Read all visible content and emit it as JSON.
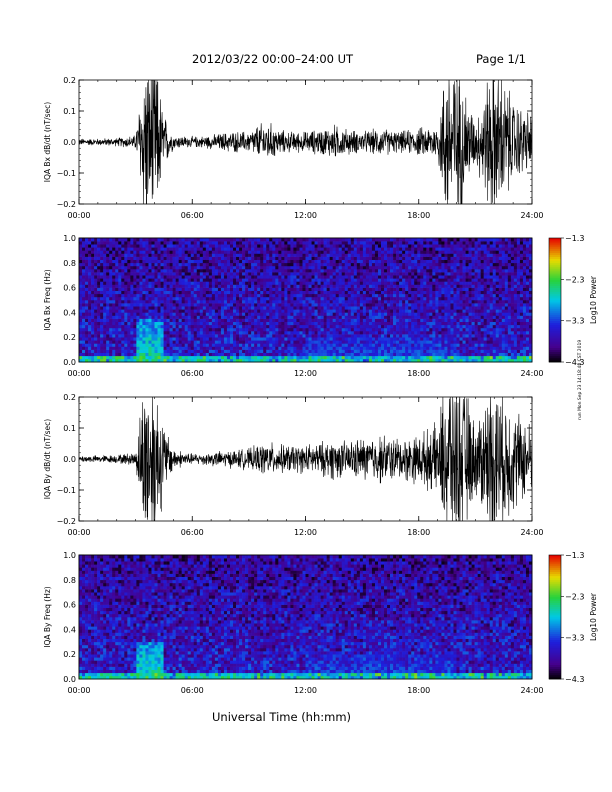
{
  "header": {
    "title": "2012/03/22  00:00–24:00 UT",
    "page": "Page 1/1"
  },
  "footer": {
    "xlabel": "Universal Time (hh:mm)",
    "timestamp": "run Mon Sep 23 14:18:48 CST 2019"
  },
  "chart_data": [
    {
      "type": "line",
      "ylabel": "IQA Bx dB/dt (nT/sec)",
      "ylim": [
        -0.2,
        0.2
      ],
      "yticks": [
        "−0.2",
        "−0.1",
        "0.0",
        "0.1",
        "0.2"
      ],
      "xticks": [
        "00:00",
        "06:00",
        "12:00",
        "18:00",
        "24:00"
      ],
      "xlim": [
        0,
        24
      ],
      "series": [
        {
          "x": [
            0,
            1,
            2,
            3,
            3.5,
            4,
            4.5,
            5,
            6,
            7,
            8,
            9,
            9.5,
            10,
            10.5,
            11,
            12,
            13,
            13.5,
            14,
            15,
            16,
            17,
            18,
            19,
            19.5,
            20,
            20.5,
            21,
            22,
            23,
            24
          ],
          "amplitude": [
            0.01,
            0.01,
            0.012,
            0.02,
            0.25,
            0.25,
            0.08,
            0.02,
            0.015,
            0.02,
            0.03,
            0.03,
            0.05,
            0.06,
            0.04,
            0.03,
            0.03,
            0.04,
            0.05,
            0.04,
            0.03,
            0.04,
            0.03,
            0.04,
            0.05,
            0.25,
            0.25,
            0.15,
            0.06,
            0.25,
            0.12,
            0.08
          ]
        }
      ]
    },
    {
      "type": "heatmap",
      "ylabel": "IQA Bx Freq (Hz)",
      "ylim": [
        0,
        1.0
      ],
      "yticks": [
        "0.0",
        "0.2",
        "0.4",
        "0.6",
        "0.8",
        "1.0"
      ],
      "xticks": [
        "00:00",
        "06:00",
        "12:00",
        "18:00",
        "24:00"
      ],
      "xlim": [
        0,
        24
      ],
      "colorbar": {
        "label": "Log10 Power",
        "ticks": [
          "−1.3",
          "−2.3",
          "−3.3",
          "−4.3"
        ],
        "range": [
          -4.3,
          -1.3
        ]
      },
      "features": [
        {
          "x": [
            3,
            4.5
          ],
          "ymax": 0.35,
          "level": -2.3
        },
        {
          "x": [
            12,
            20
          ],
          "ymax": 0.2,
          "level": -3.0
        },
        {
          "x": [
            15,
            18
          ],
          "ymax": 0.6,
          "level": -3.2
        }
      ]
    },
    {
      "type": "line",
      "ylabel": "IQA By dB/dt (nT/sec)",
      "ylim": [
        -0.2,
        0.2
      ],
      "yticks": [
        "−0.2",
        "−0.1",
        "0.0",
        "0.1",
        "0.2"
      ],
      "xticks": [
        "00:00",
        "06:00",
        "12:00",
        "18:00",
        "24:00"
      ],
      "xlim": [
        0,
        24
      ],
      "series": [
        {
          "x": [
            0,
            1,
            2,
            3,
            3.5,
            4,
            4.5,
            5,
            6,
            7,
            8,
            9,
            9.5,
            10,
            10.5,
            11,
            12,
            13,
            13.5,
            14,
            15,
            16,
            17,
            18,
            19,
            19.5,
            20,
            20.5,
            21,
            22,
            23,
            24
          ],
          "amplitude": [
            0.01,
            0.01,
            0.012,
            0.02,
            0.25,
            0.25,
            0.1,
            0.03,
            0.015,
            0.02,
            0.025,
            0.03,
            0.04,
            0.05,
            0.04,
            0.04,
            0.04,
            0.05,
            0.06,
            0.05,
            0.06,
            0.07,
            0.06,
            0.07,
            0.1,
            0.25,
            0.25,
            0.2,
            0.1,
            0.25,
            0.15,
            0.1
          ]
        }
      ]
    },
    {
      "type": "heatmap",
      "ylabel": "IQA By Freq (Hz)",
      "ylim": [
        0,
        1.0
      ],
      "yticks": [
        "0.0",
        "0.2",
        "0.4",
        "0.6",
        "0.8",
        "1.0"
      ],
      "xticks": [
        "00:00",
        "06:00",
        "12:00",
        "18:00",
        "24:00"
      ],
      "xlim": [
        0,
        24
      ],
      "colorbar": {
        "label": "Log10 Power",
        "ticks": [
          "−1.3",
          "−2.3",
          "−3.3",
          "−4.3"
        ],
        "range": [
          -4.3,
          -1.3
        ]
      },
      "features": [
        {
          "x": [
            3,
            4.5
          ],
          "ymax": 0.3,
          "level": -2.3
        },
        {
          "x": [
            12,
            20
          ],
          "ymax": 0.2,
          "level": -3.0
        },
        {
          "x": [
            15,
            18
          ],
          "ymax": 0.55,
          "level": -3.2
        }
      ]
    }
  ]
}
